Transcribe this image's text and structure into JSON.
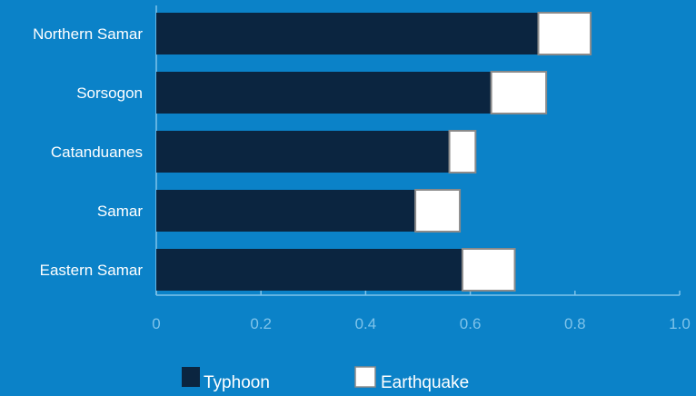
{
  "colors": {
    "background": "#0b82c8",
    "typhoon": "#0b2540",
    "earthquake": "#ffffff",
    "earthquake_border": "#8a8a8a",
    "axis": "#7ec3ea",
    "label": "#ffffff"
  },
  "chart_data": {
    "type": "bar",
    "orientation": "horizontal",
    "stacked": true,
    "title": "",
    "xlabel": "",
    "ylabel": "",
    "xlim": [
      0,
      1.0
    ],
    "x_ticks": [
      "0",
      "0.2",
      "0.4",
      "0.6",
      "0.8",
      "1.0"
    ],
    "x_tick_values": [
      0,
      0.2,
      0.4,
      0.6,
      0.8,
      1.0
    ],
    "grid": false,
    "legend_position": "bottom",
    "categories": [
      "Northern Samar",
      "Sorsogon",
      "Catanduanes",
      "Samar",
      "Eastern Samar"
    ],
    "series": [
      {
        "name": "Typhoon",
        "color": "#0b2540",
        "values": [
          0.73,
          0.64,
          0.56,
          0.495,
          0.585
        ]
      },
      {
        "name": "Earthquake",
        "color": "#ffffff",
        "values": [
          0.1,
          0.105,
          0.05,
          0.085,
          0.1
        ]
      }
    ]
  }
}
